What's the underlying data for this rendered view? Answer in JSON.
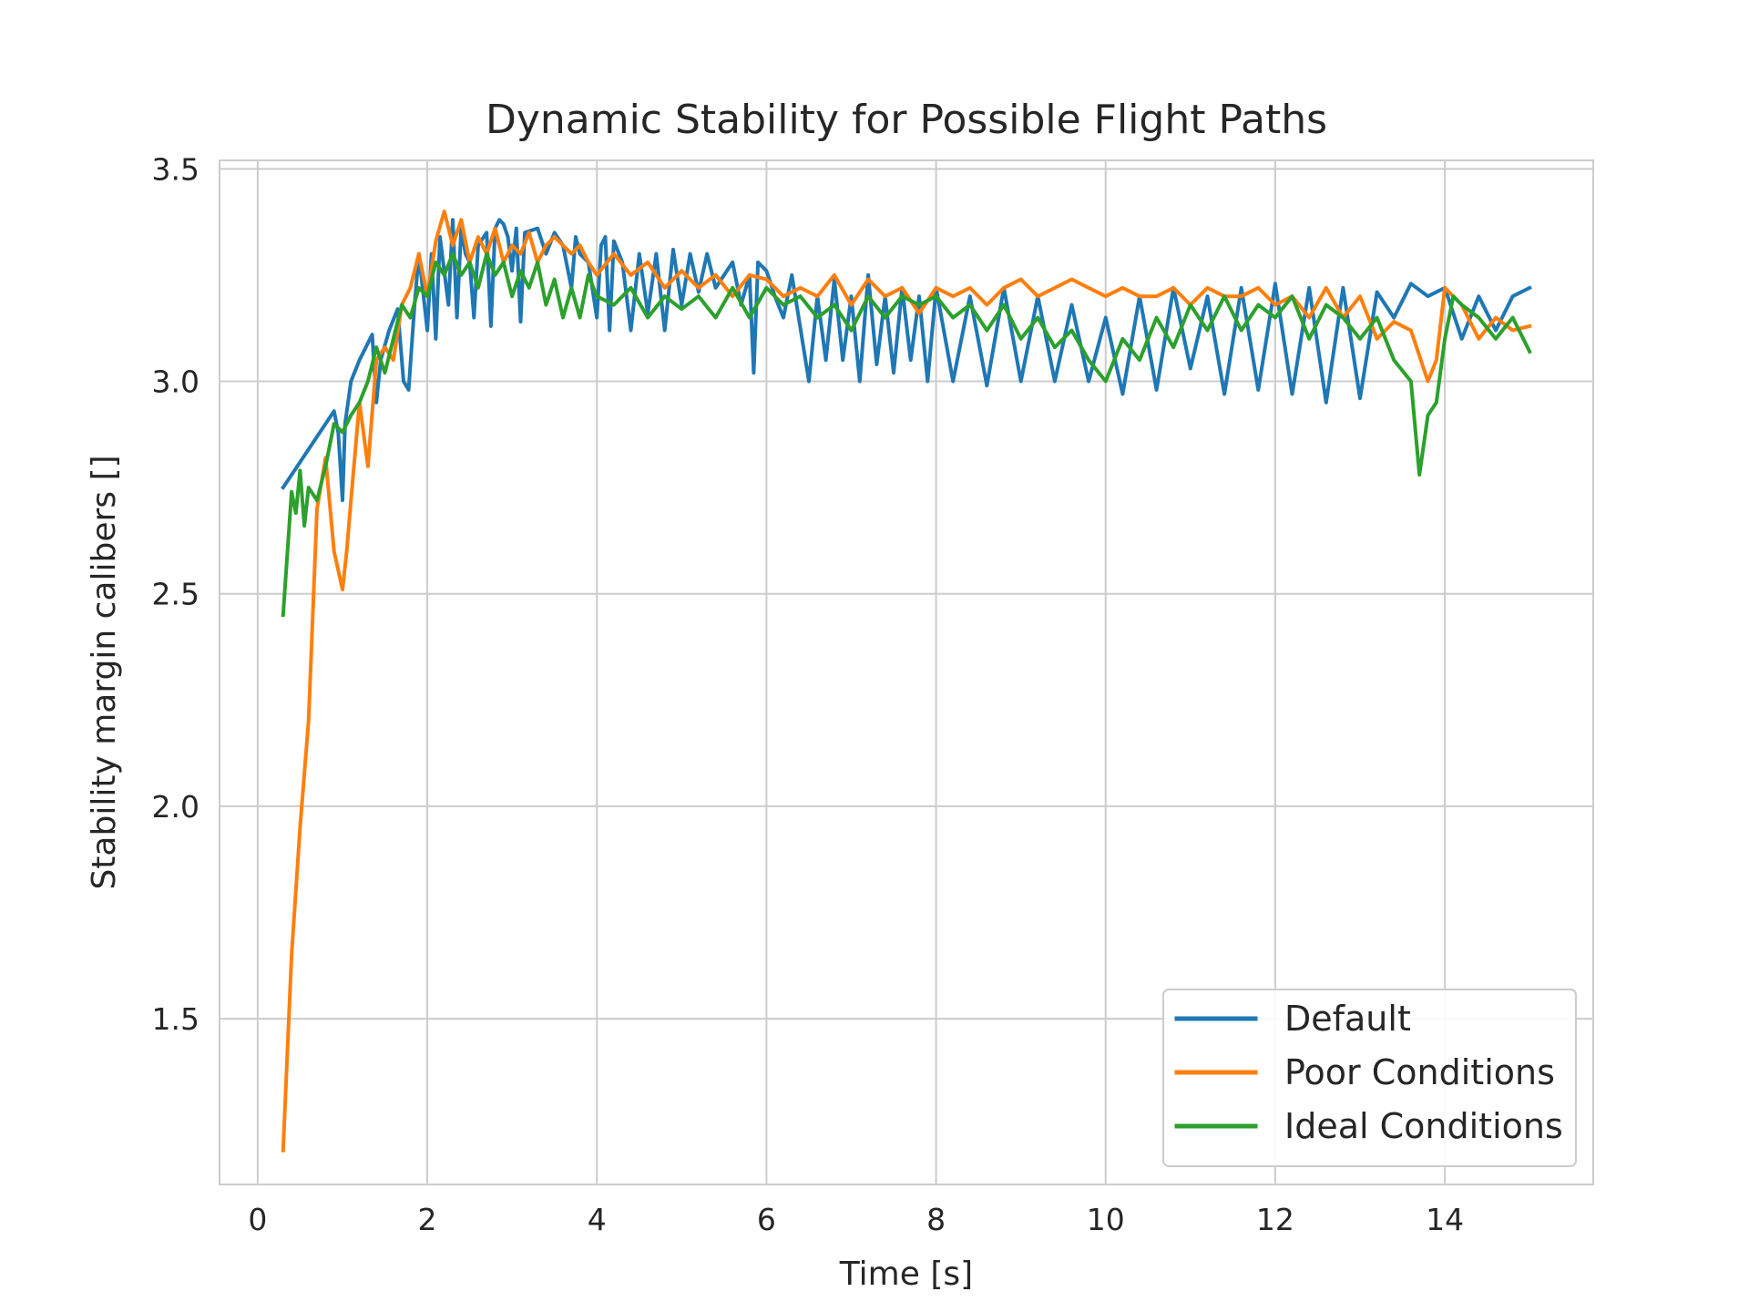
{
  "chart_data": {
    "type": "line",
    "title": "Dynamic Stability for Possible Flight Paths",
    "xlabel": "Time [s]",
    "ylabel": "Stability margin calibers []",
    "xlim": [
      -0.45,
      15.75
    ],
    "ylim": [
      1.11,
      3.52
    ],
    "xticks": [
      0,
      2,
      4,
      6,
      8,
      10,
      12,
      14
    ],
    "yticks": [
      1.5,
      2.0,
      2.5,
      3.0,
      3.5
    ],
    "xtick_labels": [
      "0",
      "2",
      "4",
      "6",
      "8",
      "10",
      "12",
      "14"
    ],
    "ytick_labels": [
      "1.5",
      "2.0",
      "2.5",
      "3.0",
      "3.5"
    ],
    "grid": true,
    "legend_position": "lower-right",
    "series": [
      {
        "name": "Default",
        "color": "#1f77b4",
        "x": [
          0.3,
          0.9,
          0.95,
          1.0,
          1.03,
          1.1,
          1.2,
          1.35,
          1.4,
          1.45,
          1.55,
          1.65,
          1.72,
          1.78,
          1.85,
          1.9,
          2.0,
          2.05,
          2.1,
          2.15,
          2.25,
          2.3,
          2.35,
          2.4,
          2.45,
          2.5,
          2.55,
          2.6,
          2.7,
          2.75,
          2.8,
          2.85,
          2.9,
          2.95,
          3.0,
          3.05,
          3.1,
          3.15,
          3.3,
          3.4,
          3.5,
          3.6,
          3.7,
          3.75,
          3.8,
          3.9,
          4.0,
          4.05,
          4.1,
          4.15,
          4.2,
          4.3,
          4.4,
          4.5,
          4.6,
          4.7,
          4.8,
          4.9,
          5.0,
          5.1,
          5.2,
          5.3,
          5.4,
          5.6,
          5.7,
          5.8,
          5.85,
          5.9,
          6.0,
          6.1,
          6.2,
          6.3,
          6.5,
          6.6,
          6.7,
          6.8,
          6.9,
          7.0,
          7.1,
          7.2,
          7.3,
          7.4,
          7.5,
          7.6,
          7.7,
          7.8,
          7.9,
          8.0,
          8.2,
          8.4,
          8.6,
          8.8,
          9.0,
          9.2,
          9.4,
          9.6,
          9.8,
          10.0,
          10.2,
          10.4,
          10.6,
          10.8,
          11.0,
          11.2,
          11.4,
          11.6,
          11.8,
          12.0,
          12.2,
          12.4,
          12.6,
          12.8,
          13.0,
          13.2,
          13.4,
          13.6,
          13.8,
          14.0,
          14.2,
          14.4,
          14.6,
          14.8,
          15.0
        ],
        "values": [
          2.75,
          2.93,
          2.88,
          2.72,
          2.9,
          3.0,
          3.05,
          3.11,
          2.95,
          3.05,
          3.12,
          3.17,
          3.0,
          2.98,
          3.18,
          3.3,
          3.12,
          3.3,
          3.1,
          3.34,
          3.18,
          3.38,
          3.15,
          3.36,
          3.3,
          3.28,
          3.15,
          3.32,
          3.35,
          3.13,
          3.36,
          3.38,
          3.37,
          3.34,
          3.26,
          3.36,
          3.14,
          3.35,
          3.36,
          3.3,
          3.35,
          3.32,
          3.22,
          3.34,
          3.3,
          3.28,
          3.15,
          3.32,
          3.34,
          3.12,
          3.33,
          3.28,
          3.12,
          3.3,
          3.16,
          3.3,
          3.12,
          3.31,
          3.18,
          3.3,
          3.21,
          3.3,
          3.22,
          3.28,
          3.18,
          3.25,
          3.02,
          3.28,
          3.26,
          3.2,
          3.15,
          3.25,
          3.0,
          3.2,
          3.05,
          3.24,
          3.05,
          3.2,
          3.0,
          3.25,
          3.04,
          3.2,
          3.02,
          3.22,
          3.05,
          3.2,
          3.0,
          3.22,
          3.0,
          3.2,
          2.99,
          3.22,
          3.0,
          3.2,
          3.0,
          3.18,
          3.0,
          3.15,
          2.97,
          3.2,
          2.98,
          3.22,
          3.03,
          3.2,
          2.97,
          3.22,
          2.98,
          3.23,
          2.97,
          3.22,
          2.95,
          3.22,
          2.96,
          3.21,
          3.15,
          3.23,
          3.2,
          3.22,
          3.1,
          3.2,
          3.12,
          3.2,
          3.22
        ]
      },
      {
        "name": "Poor Conditions",
        "color": "#ff7f0e",
        "x": [
          0.3,
          0.4,
          0.5,
          0.6,
          0.7,
          0.8,
          0.9,
          1.0,
          1.05,
          1.1,
          1.2,
          1.3,
          1.4,
          1.5,
          1.6,
          1.7,
          1.8,
          1.9,
          2.0,
          2.1,
          2.2,
          2.3,
          2.4,
          2.5,
          2.6,
          2.7,
          2.8,
          2.9,
          3.0,
          3.1,
          3.2,
          3.3,
          3.4,
          3.5,
          3.6,
          3.7,
          3.8,
          3.9,
          4.0,
          4.2,
          4.4,
          4.6,
          4.8,
          5.0,
          5.2,
          5.4,
          5.6,
          5.8,
          6.0,
          6.2,
          6.4,
          6.6,
          6.8,
          7.0,
          7.2,
          7.4,
          7.6,
          7.8,
          8.0,
          8.2,
          8.4,
          8.6,
          8.8,
          9.0,
          9.2,
          9.4,
          9.6,
          9.8,
          10.0,
          10.2,
          10.4,
          10.6,
          10.8,
          11.0,
          11.2,
          11.4,
          11.6,
          11.8,
          12.0,
          12.2,
          12.4,
          12.6,
          12.8,
          13.0,
          13.2,
          13.4,
          13.6,
          13.8,
          13.9,
          14.0,
          14.2,
          14.4,
          14.6,
          14.8,
          15.0
        ],
        "values": [
          1.19,
          1.65,
          1.95,
          2.2,
          2.7,
          2.82,
          2.6,
          2.51,
          2.6,
          2.72,
          2.95,
          2.8,
          3.05,
          3.08,
          3.05,
          3.18,
          3.22,
          3.3,
          3.2,
          3.33,
          3.4,
          3.32,
          3.38,
          3.28,
          3.34,
          3.3,
          3.36,
          3.28,
          3.32,
          3.3,
          3.35,
          3.28,
          3.32,
          3.34,
          3.32,
          3.3,
          3.32,
          3.28,
          3.25,
          3.3,
          3.25,
          3.28,
          3.22,
          3.26,
          3.22,
          3.25,
          3.2,
          3.25,
          3.24,
          3.2,
          3.22,
          3.2,
          3.25,
          3.18,
          3.24,
          3.2,
          3.22,
          3.16,
          3.22,
          3.2,
          3.22,
          3.18,
          3.22,
          3.24,
          3.2,
          3.22,
          3.24,
          3.22,
          3.2,
          3.22,
          3.2,
          3.2,
          3.22,
          3.18,
          3.22,
          3.2,
          3.2,
          3.22,
          3.18,
          3.2,
          3.15,
          3.22,
          3.15,
          3.2,
          3.1,
          3.14,
          3.12,
          3.0,
          3.05,
          3.22,
          3.18,
          3.1,
          3.15,
          3.12,
          3.13
        ]
      },
      {
        "name": "Ideal Conditions",
        "color": "#2ca02c",
        "x": [
          0.3,
          0.4,
          0.45,
          0.5,
          0.55,
          0.6,
          0.7,
          0.8,
          0.9,
          1.0,
          1.1,
          1.2,
          1.3,
          1.4,
          1.5,
          1.6,
          1.7,
          1.8,
          1.9,
          2.0,
          2.1,
          2.2,
          2.3,
          2.4,
          2.5,
          2.6,
          2.7,
          2.8,
          2.9,
          3.0,
          3.1,
          3.2,
          3.3,
          3.4,
          3.5,
          3.6,
          3.7,
          3.8,
          3.9,
          4.0,
          4.2,
          4.4,
          4.6,
          4.8,
          5.0,
          5.2,
          5.4,
          5.6,
          5.8,
          6.0,
          6.2,
          6.4,
          6.6,
          6.8,
          7.0,
          7.2,
          7.4,
          7.6,
          7.8,
          8.0,
          8.2,
          8.4,
          8.6,
          8.8,
          9.0,
          9.2,
          9.4,
          9.6,
          9.8,
          10.0,
          10.2,
          10.4,
          10.6,
          10.8,
          11.0,
          11.2,
          11.4,
          11.6,
          11.8,
          12.0,
          12.2,
          12.4,
          12.6,
          12.8,
          13.0,
          13.2,
          13.4,
          13.6,
          13.7,
          13.8,
          13.9,
          14.0,
          14.1,
          14.2,
          14.4,
          14.6,
          14.8,
          15.0
        ],
        "values": [
          2.45,
          2.74,
          2.69,
          2.79,
          2.66,
          2.75,
          2.72,
          2.8,
          2.9,
          2.88,
          2.92,
          2.95,
          3.0,
          3.08,
          3.02,
          3.1,
          3.18,
          3.15,
          3.22,
          3.2,
          3.28,
          3.25,
          3.3,
          3.25,
          3.28,
          3.22,
          3.3,
          3.25,
          3.28,
          3.2,
          3.26,
          3.22,
          3.28,
          3.18,
          3.24,
          3.15,
          3.22,
          3.15,
          3.25,
          3.2,
          3.18,
          3.22,
          3.15,
          3.2,
          3.17,
          3.2,
          3.15,
          3.22,
          3.15,
          3.22,
          3.18,
          3.2,
          3.15,
          3.18,
          3.12,
          3.2,
          3.15,
          3.2,
          3.18,
          3.2,
          3.15,
          3.18,
          3.12,
          3.18,
          3.1,
          3.15,
          3.08,
          3.12,
          3.05,
          3.0,
          3.1,
          3.05,
          3.15,
          3.08,
          3.18,
          3.12,
          3.2,
          3.12,
          3.18,
          3.15,
          3.2,
          3.1,
          3.18,
          3.15,
          3.1,
          3.15,
          3.05,
          3.0,
          2.78,
          2.92,
          2.95,
          3.1,
          3.2,
          3.18,
          3.15,
          3.1,
          3.15,
          3.07
        ]
      }
    ]
  }
}
